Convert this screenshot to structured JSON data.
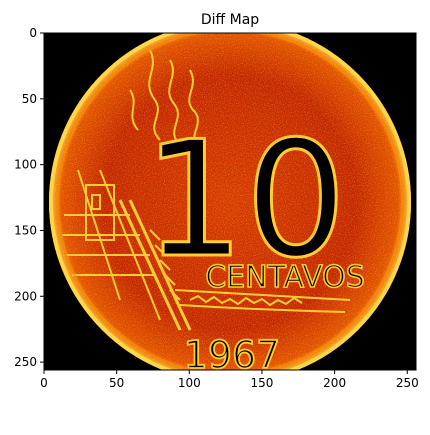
{
  "chart_data": {
    "type": "heatmap",
    "title": "Diff Map",
    "xlabel": "",
    "ylabel": "",
    "xlim": [
      0,
      256
    ],
    "ylim": [
      256,
      0
    ],
    "x_ticks": [
      0,
      50,
      100,
      150,
      200,
      250
    ],
    "y_ticks": [
      0,
      50,
      100,
      150,
      200,
      250
    ],
    "colormap": "hot",
    "grid": false,
    "image_content": {
      "description_words": [
        "10",
        "CENTAVOS",
        "1967"
      ],
      "big_numeral": "10",
      "denomination": "CENTAVOS",
      "year": "1967"
    }
  },
  "colors": {
    "background_black": "#000000",
    "coin_dark_red": "#8a1000",
    "coin_red": "#c82000",
    "coin_orange": "#f05a00",
    "coin_yellow": "#ffb400",
    "coin_highlight": "#ffe680"
  }
}
